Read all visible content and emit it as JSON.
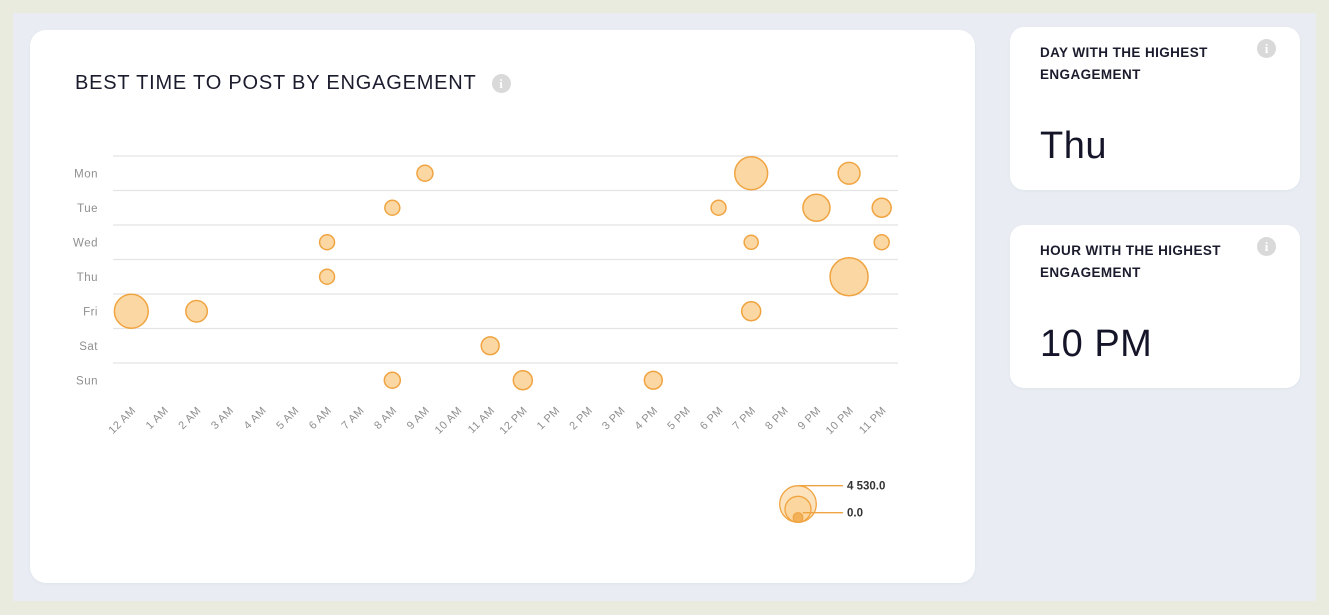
{
  "page": {
    "background": "#e8ebde",
    "panel_background": "#e9edf3"
  },
  "chart_card": {
    "title": "BEST TIME TO POST BY ENGAGEMENT"
  },
  "chart_data": {
    "type": "scatter",
    "subtype": "bubble",
    "title": "BEST TIME TO POST BY ENGAGEMENT",
    "x_categories": [
      "12 AM",
      "1 AM",
      "2 AM",
      "3 AM",
      "4 AM",
      "5 AM",
      "6 AM",
      "7 AM",
      "8 AM",
      "9 AM",
      "10 AM",
      "11 AM",
      "12 PM",
      "1 PM",
      "2 PM",
      "3 PM",
      "4 PM",
      "5 PM",
      "6 PM",
      "7 PM",
      "8 PM",
      "9 PM",
      "10 PM",
      "11 PM"
    ],
    "y_categories": [
      "Mon",
      "Tue",
      "Wed",
      "Thu",
      "Fri",
      "Sat",
      "Sun"
    ],
    "grid": "horizontal",
    "legend_position": "bottom-right",
    "size_scale": {
      "min_value": 0.0,
      "max_value": 4530.0,
      "min_label": "0.0",
      "max_label": "4 530.0"
    },
    "points": [
      {
        "day": "Mon",
        "hour": "9 AM",
        "value": 800
      },
      {
        "day": "Mon",
        "hour": "7 PM",
        "value": 3400
      },
      {
        "day": "Mon",
        "hour": "10 PM",
        "value": 1500
      },
      {
        "day": "Tue",
        "hour": "8 AM",
        "value": 700
      },
      {
        "day": "Tue",
        "hour": "6 PM",
        "value": 700
      },
      {
        "day": "Tue",
        "hour": "9 PM",
        "value": 2300
      },
      {
        "day": "Tue",
        "hour": "11 PM",
        "value": 1130
      },
      {
        "day": "Wed",
        "hour": "6 AM",
        "value": 700
      },
      {
        "day": "Wed",
        "hour": "7 PM",
        "value": 620
      },
      {
        "day": "Wed",
        "hour": "11 PM",
        "value": 700
      },
      {
        "day": "Thu",
        "hour": "6 AM",
        "value": 700
      },
      {
        "day": "Thu",
        "hour": "10 PM",
        "value": 4530
      },
      {
        "day": "Fri",
        "hour": "12 AM",
        "value": 3600
      },
      {
        "day": "Fri",
        "hour": "2 AM",
        "value": 1450
      },
      {
        "day": "Fri",
        "hour": "7 PM",
        "value": 1130
      },
      {
        "day": "Sat",
        "hour": "11 AM",
        "value": 1000
      },
      {
        "day": "Sun",
        "hour": "8 AM",
        "value": 800
      },
      {
        "day": "Sun",
        "hour": "12 PM",
        "value": 1130
      },
      {
        "day": "Sun",
        "hour": "4 PM",
        "value": 1000
      }
    ]
  },
  "stat_cards": [
    {
      "label": "DAY WITH THE HIGHEST ENGAGEMENT",
      "value": "Thu"
    },
    {
      "label": "HOUR WITH THE HIGHEST ENGAGEMENT",
      "value": "10 PM"
    }
  ],
  "icons": {
    "info_glyph": "i"
  },
  "colors": {
    "bubble_fill": "#fbd39a",
    "bubble_stroke": "#f0a441",
    "legend_line": "#f0a441",
    "legend_text": "#333333",
    "title_text": "#1b1b2e",
    "axis_text": "#8f8f8f",
    "gridline": "#e4e4e4",
    "card_background": "#ffffff",
    "info_icon_background": "#d9d9d9"
  }
}
